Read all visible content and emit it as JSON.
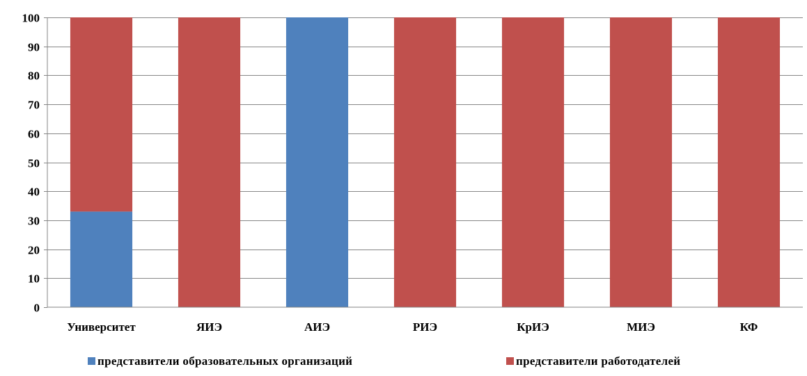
{
  "chart_data": {
    "type": "bar",
    "stacked": true,
    "categories": [
      "Университет",
      "ЯИЭ",
      "АИЭ",
      "РИЭ",
      "КрИЭ",
      "МИЭ",
      "КФ"
    ],
    "series": [
      {
        "name": "представители образовательных организаций",
        "color": "#4f81bd",
        "values": [
          33,
          0,
          100,
          0,
          0,
          0,
          0
        ]
      },
      {
        "name": "представители работодателей",
        "color": "#c0504d",
        "values": [
          67,
          100,
          0,
          100,
          100,
          100,
          100
        ]
      }
    ],
    "ylim": [
      0,
      100
    ],
    "yticks": [
      0,
      10,
      20,
      30,
      40,
      50,
      60,
      70,
      80,
      90,
      100
    ],
    "grid": true,
    "legend_position": "bottom",
    "title": "",
    "xlabel": "",
    "ylabel": ""
  }
}
